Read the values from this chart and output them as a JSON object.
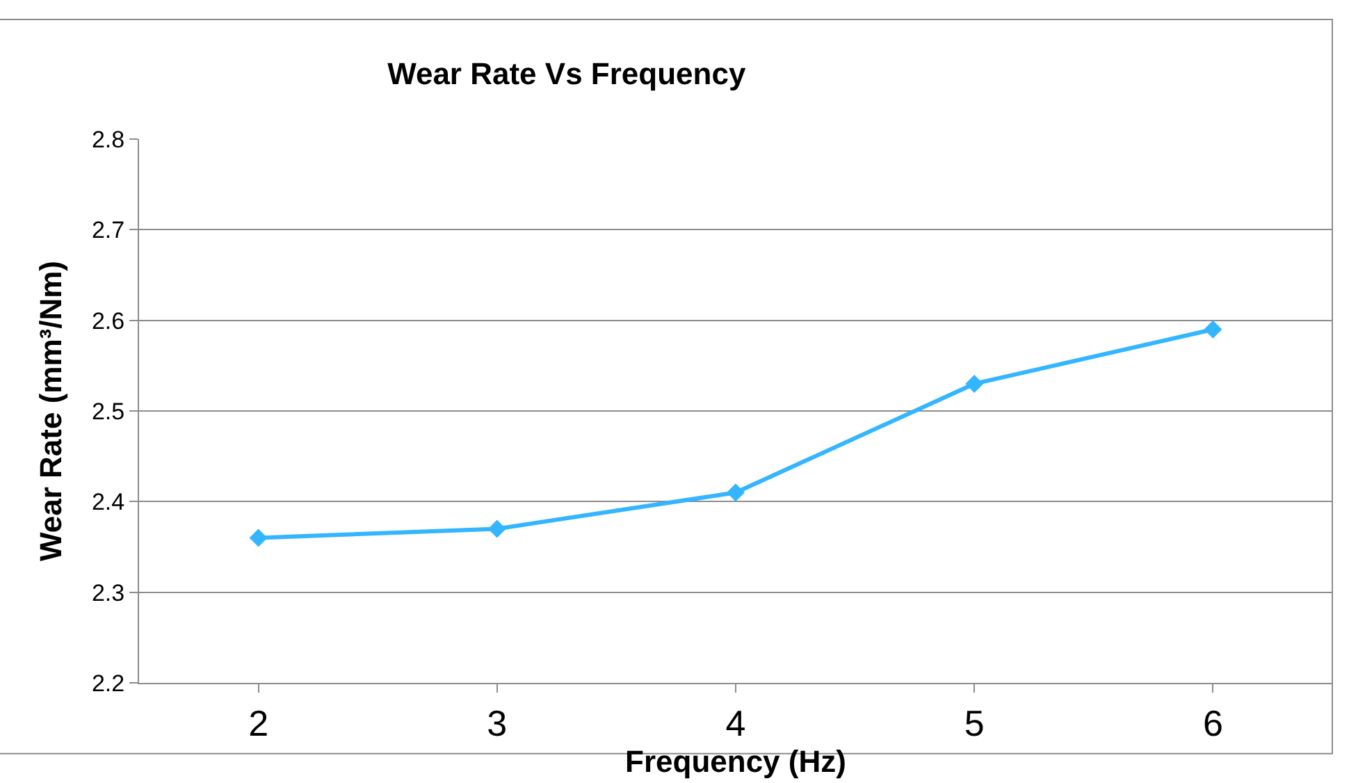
{
  "chart_data": {
    "type": "line",
    "title": "Wear Rate Vs Frequency",
    "xlabel": "Frequency (Hz)",
    "ylabel": "Wear Rate (mm³/Nm)",
    "categories": [
      "2",
      "3",
      "4",
      "5",
      "6"
    ],
    "series": [
      {
        "color": "#33b5ff",
        "values": [
          2.36,
          2.37,
          2.41,
          2.53,
          2.59
        ]
      }
    ],
    "ylim": [
      2.2,
      2.8
    ],
    "yticks": [
      2.2,
      2.3,
      2.4,
      2.5,
      2.6,
      2.7,
      2.8
    ],
    "grid": "y",
    "marker": "diamond",
    "line_style": "solid"
  }
}
